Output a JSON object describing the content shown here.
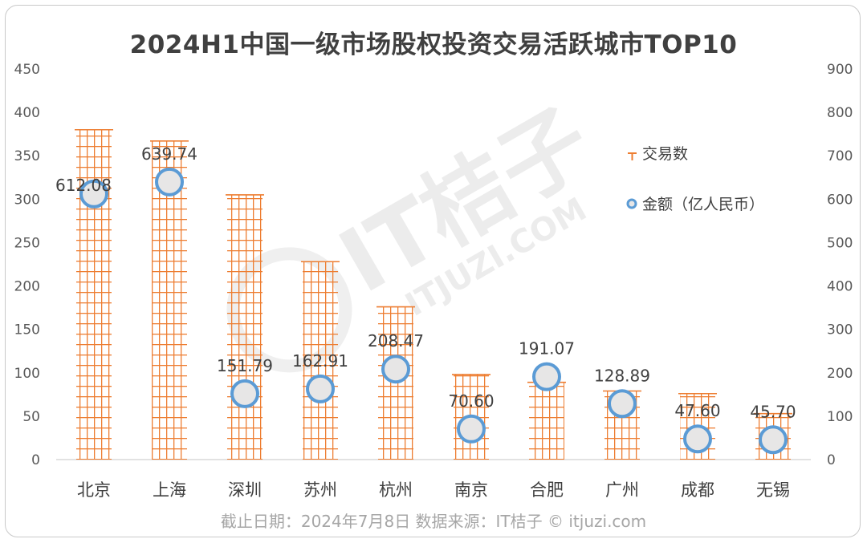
{
  "chart_data": {
    "type": "bar",
    "title": "2024H1中国一级市场股权投资交易活跃城市TOP10",
    "categories": [
      "北京",
      "上海",
      "深圳",
      "苏州",
      "杭州",
      "南京",
      "合肥",
      "广州",
      "成都",
      "无锡"
    ],
    "series": [
      {
        "name": "交易数",
        "type": "bar",
        "axis": "left",
        "color": "#ed7d31",
        "values": [
          380,
          367,
          305,
          228,
          176,
          98,
          89,
          79,
          76,
          53
        ]
      },
      {
        "name": "金额（亿人民币）",
        "type": "scatter",
        "axis": "right",
        "color": "#5b9bd5",
        "values": [
          612.08,
          639.74,
          151.79,
          162.91,
          208.47,
          70.6,
          191.07,
          128.89,
          47.6,
          45.7
        ],
        "labels": [
          "612.08",
          "639.74",
          "151.79",
          "162.91",
          "208.47",
          "70.60",
          "191.07",
          "128.89",
          "47.60",
          "45.70"
        ]
      }
    ],
    "y_left": {
      "min": 0,
      "max": 450,
      "ticks": [
        "0",
        "50",
        "100",
        "150",
        "200",
        "250",
        "300",
        "350",
        "400",
        "450"
      ]
    },
    "y_right": {
      "min": 0,
      "max": 900,
      "ticks": [
        "0",
        "100",
        "200",
        "300",
        "400",
        "500",
        "600",
        "700",
        "800",
        "900"
      ]
    },
    "legend_position": "right",
    "grid": false
  },
  "watermark": {
    "main": "IT桔子",
    "sub": "ITJUZI.COM"
  },
  "footer": {
    "text": "截止日期：2024年7月8日    数据来源：IT桔子 © itjuzi.com"
  }
}
